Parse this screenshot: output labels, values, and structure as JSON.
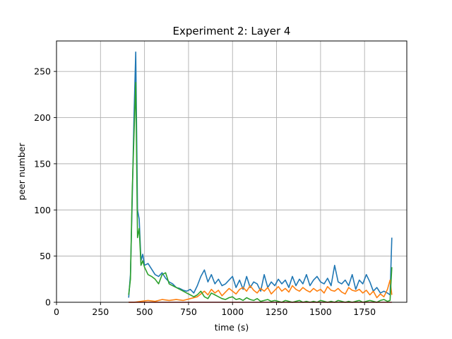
{
  "chart_data": {
    "type": "line",
    "title": "Experiment 2: Layer 4",
    "xlabel": "time (s)",
    "ylabel": "peer number",
    "xlim": [
      0,
      1990
    ],
    "ylim": [
      0,
      283
    ],
    "xticks": [
      0,
      250,
      500,
      750,
      1000,
      1250,
      1500,
      1750
    ],
    "xtick_labels": [
      "0",
      "250",
      "500",
      "750",
      "1000",
      "1250",
      "1500",
      "1750"
    ],
    "yticks": [
      0,
      50,
      100,
      150,
      200,
      250
    ],
    "ytick_labels": [
      "0",
      "50",
      "100",
      "150",
      "200",
      "250"
    ],
    "grid": true,
    "legend": "none",
    "series": [
      {
        "color": "#1f77b4",
        "x": [
          410,
          420,
          430,
          440,
          450,
          460,
          470,
          480,
          490,
          500,
          520,
          540,
          560,
          580,
          600,
          620,
          640,
          660,
          680,
          700,
          720,
          740,
          760,
          780,
          800,
          820,
          840,
          860,
          880,
          900,
          920,
          940,
          960,
          980,
          1000,
          1020,
          1040,
          1060,
          1080,
          1100,
          1120,
          1140,
          1160,
          1180,
          1200,
          1220,
          1240,
          1260,
          1280,
          1300,
          1320,
          1340,
          1360,
          1380,
          1400,
          1420,
          1440,
          1460,
          1480,
          1500,
          1520,
          1540,
          1560,
          1580,
          1600,
          1620,
          1640,
          1660,
          1680,
          1700,
          1720,
          1740,
          1760,
          1780,
          1800,
          1820,
          1840,
          1860,
          1880,
          1895,
          1905
        ],
        "y": [
          5,
          30,
          110,
          200,
          271,
          100,
          90,
          45,
          52,
          40,
          42,
          36,
          30,
          28,
          32,
          26,
          22,
          20,
          16,
          15,
          13,
          12,
          14,
          10,
          18,
          28,
          35,
          22,
          30,
          20,
          25,
          18,
          20,
          24,
          28,
          16,
          24,
          14,
          28,
          16,
          22,
          20,
          12,
          30,
          16,
          22,
          18,
          25,
          20,
          24,
          16,
          28,
          18,
          25,
          20,
          30,
          18,
          24,
          28,
          22,
          20,
          26,
          18,
          40,
          22,
          20,
          24,
          18,
          30,
          14,
          24,
          20,
          30,
          22,
          12,
          16,
          10,
          12,
          10,
          8,
          70
        ]
      },
      {
        "color": "#ff7f0e",
        "x": [
          410,
          440,
          480,
          520,
          560,
          600,
          640,
          680,
          720,
          760,
          800,
          820,
          840,
          860,
          880,
          900,
          920,
          940,
          960,
          980,
          1000,
          1020,
          1040,
          1060,
          1080,
          1100,
          1120,
          1140,
          1160,
          1180,
          1200,
          1220,
          1240,
          1260,
          1280,
          1300,
          1320,
          1340,
          1360,
          1380,
          1400,
          1420,
          1440,
          1460,
          1480,
          1500,
          1520,
          1540,
          1560,
          1580,
          1600,
          1620,
          1640,
          1660,
          1680,
          1700,
          1720,
          1740,
          1760,
          1780,
          1800,
          1820,
          1840,
          1860,
          1880,
          1895,
          1905
        ],
        "y": [
          0,
          0,
          1,
          2,
          1,
          3,
          2,
          3,
          2,
          4,
          6,
          9,
          12,
          8,
          14,
          10,
          13,
          7,
          11,
          15,
          12,
          9,
          14,
          16,
          12,
          18,
          13,
          10,
          15,
          12,
          16,
          9,
          13,
          17,
          12,
          15,
          11,
          18,
          14,
          12,
          16,
          13,
          11,
          15,
          12,
          14,
          10,
          17,
          13,
          12,
          15,
          11,
          9,
          16,
          13,
          12,
          14,
          10,
          13,
          8,
          12,
          5,
          9,
          6,
          14,
          24,
          8
        ]
      },
      {
        "color": "#2ca02c",
        "x": [
          410,
          420,
          430,
          440,
          450,
          460,
          470,
          480,
          490,
          500,
          520,
          540,
          560,
          580,
          600,
          620,
          640,
          660,
          680,
          700,
          720,
          740,
          760,
          780,
          800,
          820,
          840,
          860,
          880,
          900,
          920,
          940,
          960,
          980,
          1000,
          1020,
          1040,
          1060,
          1080,
          1100,
          1120,
          1140,
          1160,
          1180,
          1200,
          1220,
          1240,
          1260,
          1280,
          1300,
          1320,
          1340,
          1360,
          1380,
          1400,
          1420,
          1440,
          1460,
          1480,
          1500,
          1520,
          1540,
          1560,
          1580,
          1600,
          1620,
          1640,
          1660,
          1680,
          1700,
          1720,
          1740,
          1760,
          1780,
          1800,
          1820,
          1840,
          1860,
          1880,
          1895,
          1905
        ],
        "y": [
          8,
          25,
          120,
          180,
          238,
          70,
          80,
          40,
          45,
          38,
          30,
          28,
          25,
          20,
          30,
          32,
          20,
          18,
          16,
          14,
          12,
          10,
          8,
          6,
          8,
          12,
          6,
          4,
          10,
          8,
          6,
          4,
          3,
          5,
          6,
          3,
          4,
          2,
          5,
          3,
          2,
          4,
          1,
          2,
          3,
          1,
          2,
          1,
          0,
          2,
          1,
          0,
          1,
          2,
          0,
          1,
          0,
          1,
          0,
          2,
          1,
          0,
          1,
          0,
          2,
          1,
          0,
          1,
          0,
          1,
          2,
          0,
          1,
          2,
          1,
          0,
          2,
          3,
          1,
          2,
          38
        ]
      },
      {
        "color": "#d62728",
        "x": [
          410,
          600,
          800,
          1000,
          1200,
          1400,
          1600,
          1800,
          1905
        ],
        "y": [
          0,
          0,
          0,
          0,
          0,
          0,
          0,
          0,
          0
        ]
      }
    ]
  }
}
